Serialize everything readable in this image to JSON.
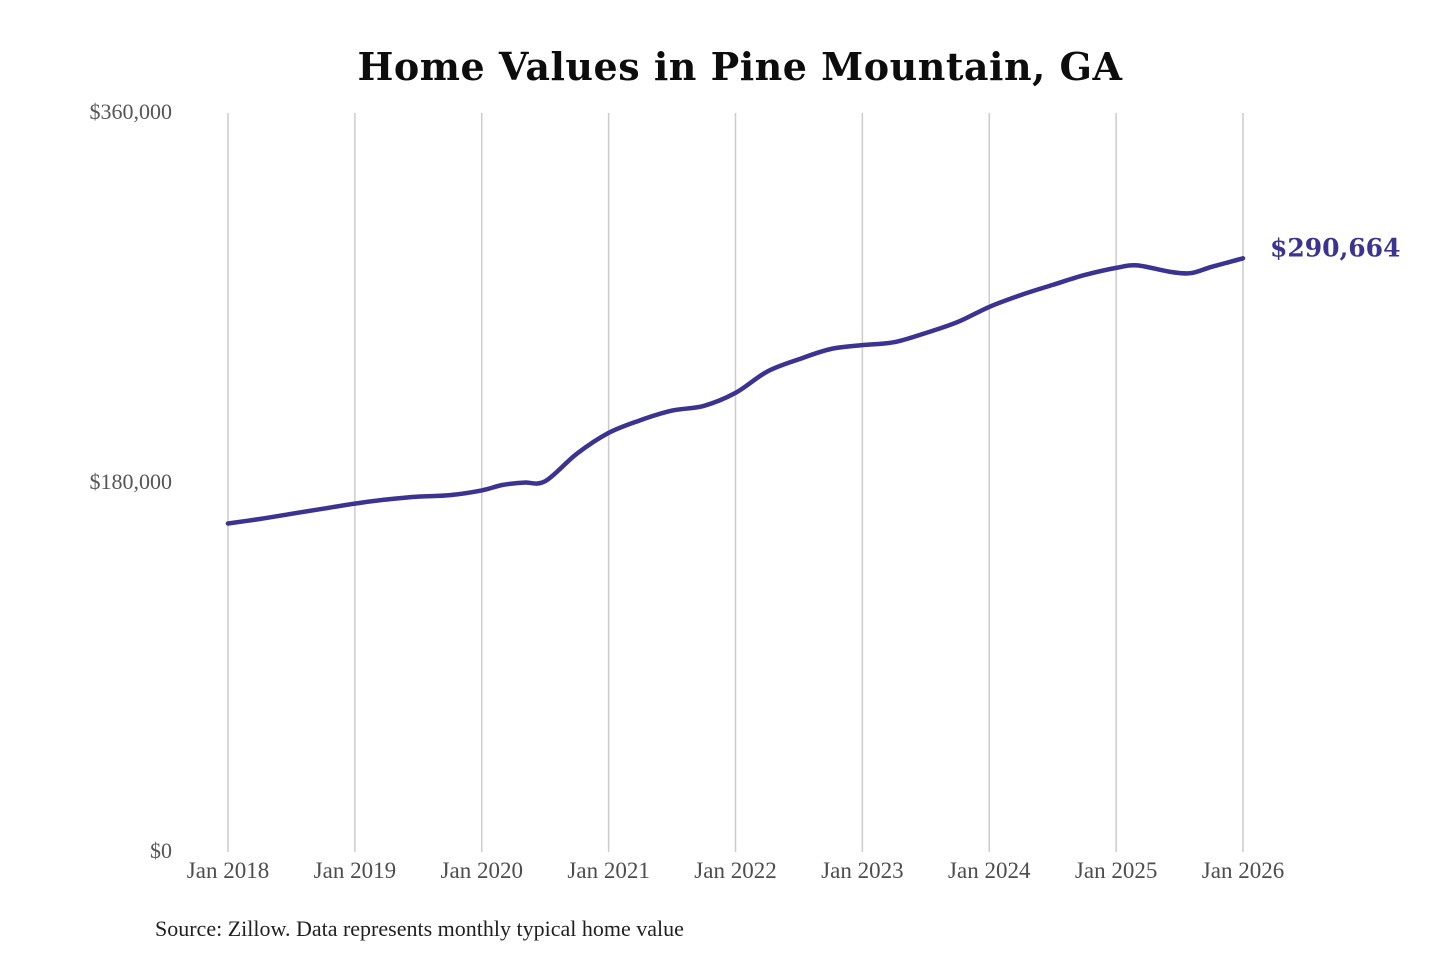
{
  "page": {
    "background_color": "#ffffff"
  },
  "chart": {
    "title": "Home Values in Pine Mountain, GA",
    "source_note": "Source: Zillow. Data represents monthly typical home value",
    "end_label": "$290,664",
    "colors": {
      "line": "#3a3392",
      "grid": "#cccccc",
      "y_tick_text": "#565656",
      "x_tick_text": "#4d4d4d",
      "title_text": "#0d0d0d",
      "source_text": "#1f1f1f",
      "end_label_text": "#3a3392"
    }
  },
  "chart_data": {
    "type": "line",
    "title": "Home Values in Pine Mountain, GA",
    "x_axis": {
      "unit": "months since Jan 2018",
      "tick_labels": [
        "Jan 2018",
        "Jan 2019",
        "Jan 2020",
        "Jan 2021",
        "Jan 2022",
        "Jan 2023",
        "Jan 2024",
        "Jan 2025",
        "Jan 2026"
      ],
      "range_months": [
        0,
        96
      ]
    },
    "y_axis": {
      "ticks": [
        {
          "label": "$0",
          "value": 0
        },
        {
          "label": "$180,000",
          "value": 180000
        },
        {
          "label": "$360,000",
          "value": 360000
        }
      ],
      "range": [
        0,
        360000
      ]
    },
    "grid": "vertical-only",
    "legend": "none",
    "series": [
      {
        "name": "Monthly typical home value",
        "final_value": 290664,
        "points": [
          [
            0,
            161500
          ],
          [
            3,
            163700
          ],
          [
            6,
            166200
          ],
          [
            9,
            168700
          ],
          [
            12,
            171200
          ],
          [
            15,
            173200
          ],
          [
            18,
            174600
          ],
          [
            21,
            175300
          ],
          [
            24,
            177600
          ],
          [
            26,
            180300
          ],
          [
            28,
            181400
          ],
          [
            30,
            182100
          ],
          [
            33,
            195500
          ],
          [
            36,
            205600
          ],
          [
            39,
            211800
          ],
          [
            42,
            216500
          ],
          [
            45,
            218800
          ],
          [
            48,
            225100
          ],
          [
            51,
            235500
          ],
          [
            54,
            241500
          ],
          [
            57,
            246500
          ],
          [
            60,
            248400
          ],
          [
            63,
            249800
          ],
          [
            66,
            254300
          ],
          [
            69,
            259600
          ],
          [
            72,
            267000
          ],
          [
            75,
            272800
          ],
          [
            78,
            277700
          ],
          [
            81,
            282500
          ],
          [
            84,
            286000
          ],
          [
            86,
            287200
          ],
          [
            89,
            284200
          ],
          [
            91,
            283400
          ],
          [
            93,
            286500
          ],
          [
            96,
            290664
          ]
        ]
      }
    ]
  }
}
